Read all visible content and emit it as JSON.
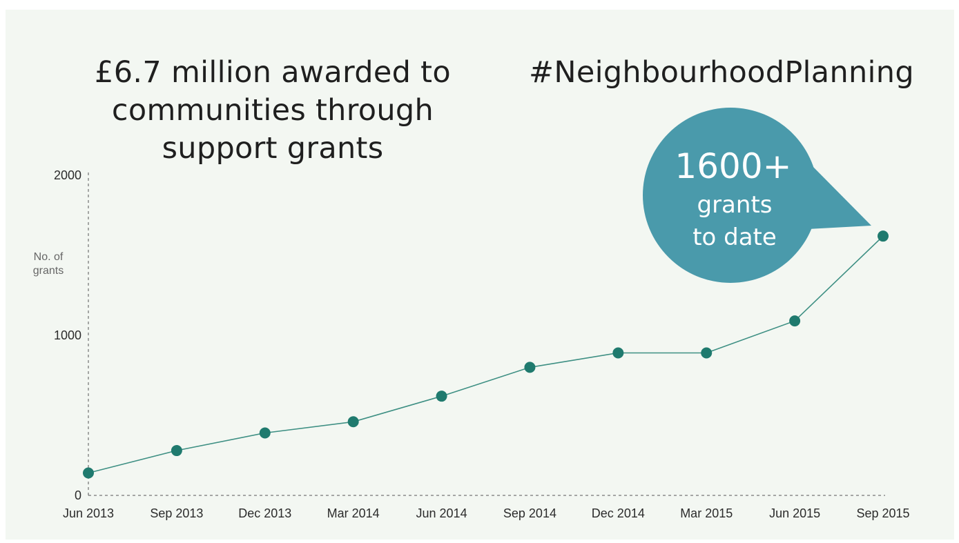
{
  "header": {
    "title_lines": [
      "£6.7 million awarded to",
      "communities through",
      "support grants"
    ],
    "hashtag": "#NeighbourhoodPlanning"
  },
  "callout": {
    "value": "1600+",
    "line2": "grants",
    "line3": "to date",
    "color": "#4a9aab"
  },
  "chart_data": {
    "type": "line",
    "title": "£6.7 million awarded to communities through support grants",
    "xlabel": "",
    "ylabel": "No. of grants",
    "categories": [
      "Jun 2013",
      "Sep 2013",
      "Dec 2013",
      "Mar 2014",
      "Jun 2014",
      "Sep 2014",
      "Dec 2014",
      "Mar 2015",
      "Jun 2015",
      "Sep 2015"
    ],
    "series": [
      {
        "name": "",
        "values": [
          140,
          280,
          390,
          460,
          620,
          800,
          890,
          890,
          1090,
          1620
        ]
      }
    ],
    "yticks": [
      0,
      1000,
      2000
    ],
    "ylim": [
      0,
      2000
    ],
    "grid": false,
    "legend": "none",
    "line_color": "#3d8f83",
    "marker_color": "#1f7a6e"
  }
}
